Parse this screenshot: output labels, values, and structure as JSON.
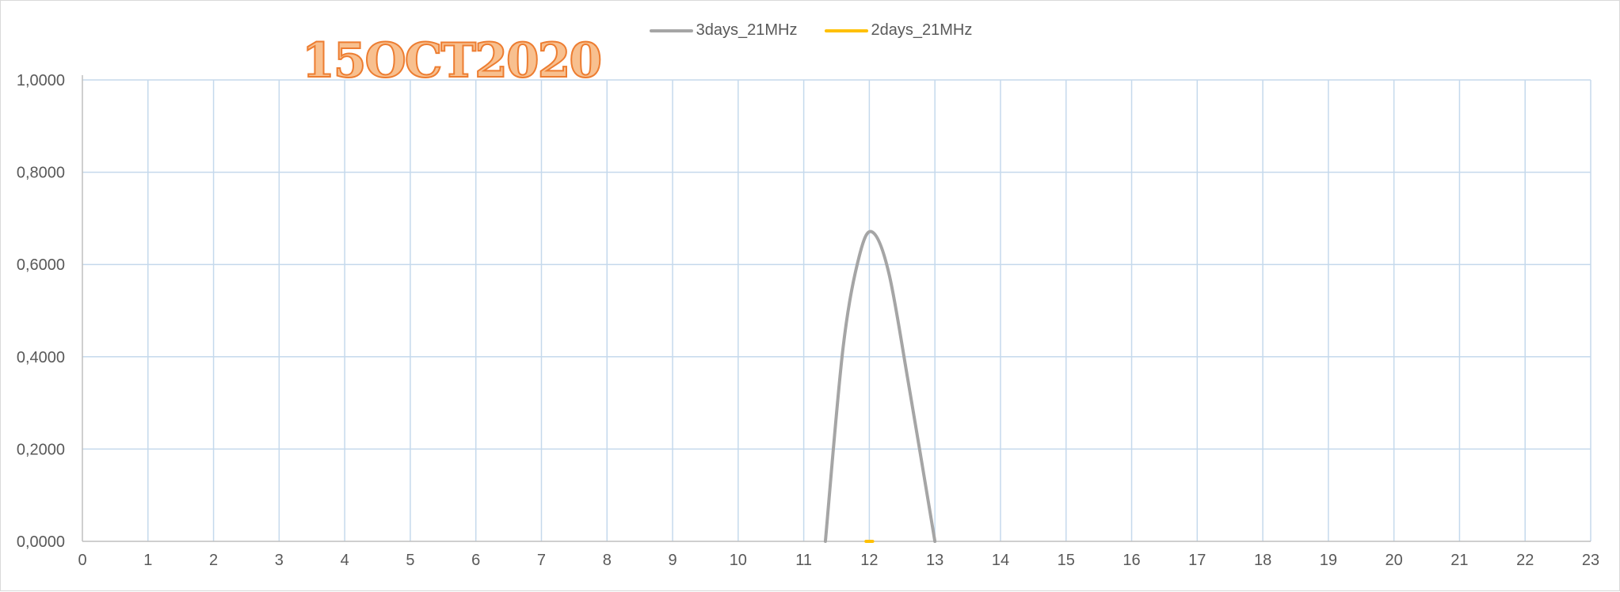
{
  "chart_data": {
    "type": "line",
    "title": "15OCT2020",
    "xlabel": "",
    "ylabel": "",
    "xlim": [
      0,
      23
    ],
    "ylim": [
      0,
      1
    ],
    "x_ticks": [
      "0",
      "1",
      "2",
      "3",
      "4",
      "5",
      "6",
      "7",
      "8",
      "9",
      "10",
      "11",
      "12",
      "13",
      "14",
      "15",
      "16",
      "17",
      "18",
      "19",
      "20",
      "21",
      "22",
      "23"
    ],
    "y_ticks": [
      "0,0000",
      "0,2000",
      "0,4000",
      "0,6000",
      "0,8000",
      "1,0000"
    ],
    "y_tick_values": [
      0,
      0.2,
      0.4,
      0.6,
      0.8,
      1.0
    ],
    "grid": true,
    "legend_position": "top-center",
    "series": [
      {
        "name": "3days_21MHz",
        "color": "#a5a5a5",
        "points": [
          [
            11.33,
            0
          ],
          [
            11.6,
            0.42
          ],
          [
            11.85,
            0.62
          ],
          [
            12.05,
            0.67
          ],
          [
            12.3,
            0.58
          ],
          [
            12.6,
            0.34
          ],
          [
            13.0,
            0
          ]
        ]
      },
      {
        "name": "2days_21MHz",
        "color": "#ffc000",
        "points": [
          [
            11.95,
            0
          ],
          [
            12.05,
            0
          ]
        ]
      }
    ]
  },
  "colors": {
    "grid": "#c5d9ec",
    "axis": "#bfbfbf",
    "title_fill": "#f8c08f",
    "title_stroke": "#ed7d31"
  }
}
